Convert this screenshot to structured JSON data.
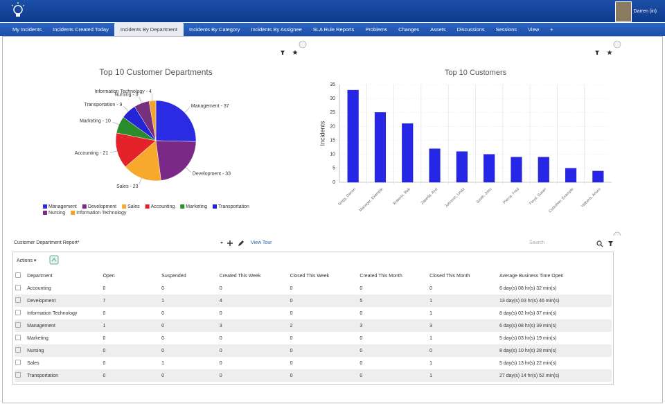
{
  "header": {
    "user": "Darren (in)"
  },
  "tabs": [
    "My Incidents",
    "Incidents Created Today",
    "Incidents By Department",
    "Incidents By Category",
    "Incidents By Assignee",
    "SLA Rule Reports",
    "Problems",
    "Changes",
    "Assets",
    "Discussions",
    "Sessions",
    "View",
    "+"
  ],
  "active_tab": 2,
  "chart_data": [
    {
      "type": "pie",
      "title": "Top 10 Customer Departments",
      "categories": [
        "Management",
        "Development",
        "Sales",
        "Accounting",
        "Marketing",
        "Transportation",
        "Nursing",
        "Information Technology"
      ],
      "values": [
        37,
        33,
        23,
        21,
        10,
        9,
        9,
        4
      ],
      "value_labels": [
        "Management - 37",
        "Development - 33",
        "Sales - 23",
        "Accounting - 21",
        "Marketing - 10",
        "Transportation - 9",
        "Nursing - 9",
        "Information Technology - 4"
      ],
      "colors": [
        "#2b2be3",
        "#7a2a86",
        "#f6a92c",
        "#e3222a",
        "#2a8c2a",
        "#2424d6",
        "#77307e",
        "#f2a52a"
      ],
      "legend": "bottom"
    },
    {
      "type": "bar",
      "title": "Top 10 Customers",
      "y_label": "Incidents",
      "categories": [
        "Grigg, Darren",
        "Manager, Example",
        "Roberts, Bob",
        "Zapeda, Ana",
        "Johnson, Linda",
        "Smith, John",
        "Pierce, Fred",
        "Floyd, Susan",
        "Customer, Example",
        "Valberts, Arturo"
      ],
      "values": [
        33,
        25,
        21,
        12,
        11,
        10,
        9,
        9,
        5,
        4
      ],
      "color": "#2626e6",
      "ylim": [
        0,
        35
      ],
      "yticks": [
        0,
        5,
        10,
        15,
        20,
        25,
        30,
        35
      ],
      "grid": true
    }
  ],
  "report": {
    "title": "Customer Department Report*",
    "view_tour": "View Tour",
    "search": "Search",
    "actions": "Actions",
    "columns": [
      "Department",
      "Open",
      "Suspended",
      "Created This Week",
      "Closed This Week",
      "Created This Month",
      "Closed This Month",
      "Average Business Time Open"
    ],
    "rows": [
      [
        "Accounting",
        0,
        0,
        0,
        0,
        0,
        0,
        "6 day(s) 08 hr(s) 32 min(s)"
      ],
      [
        "Development",
        7,
        1,
        4,
        0,
        5,
        1,
        "13 day(s) 03 hr(s) 46 min(s)"
      ],
      [
        "Information Technology",
        0,
        0,
        0,
        0,
        0,
        1,
        "8 day(s) 02 hr(s) 37 min(s)"
      ],
      [
        "Management",
        1,
        0,
        3,
        2,
        3,
        3,
        "6 day(s) 08 hr(s) 39 min(s)"
      ],
      [
        "Marketing",
        0,
        0,
        0,
        0,
        0,
        1,
        "5 day(s) 03 hr(s) 19 min(s)"
      ],
      [
        "Nursing",
        0,
        0,
        0,
        0,
        0,
        0,
        "8 day(s) 10 hr(s) 28 min(s)"
      ],
      [
        "Sales",
        0,
        1,
        0,
        0,
        0,
        1,
        "5 day(s) 13 hr(s) 22 min(s)"
      ],
      [
        "Transportation",
        0,
        0,
        0,
        0,
        0,
        1,
        "27 day(s) 14 hr(s) 52 min(s)"
      ]
    ]
  }
}
